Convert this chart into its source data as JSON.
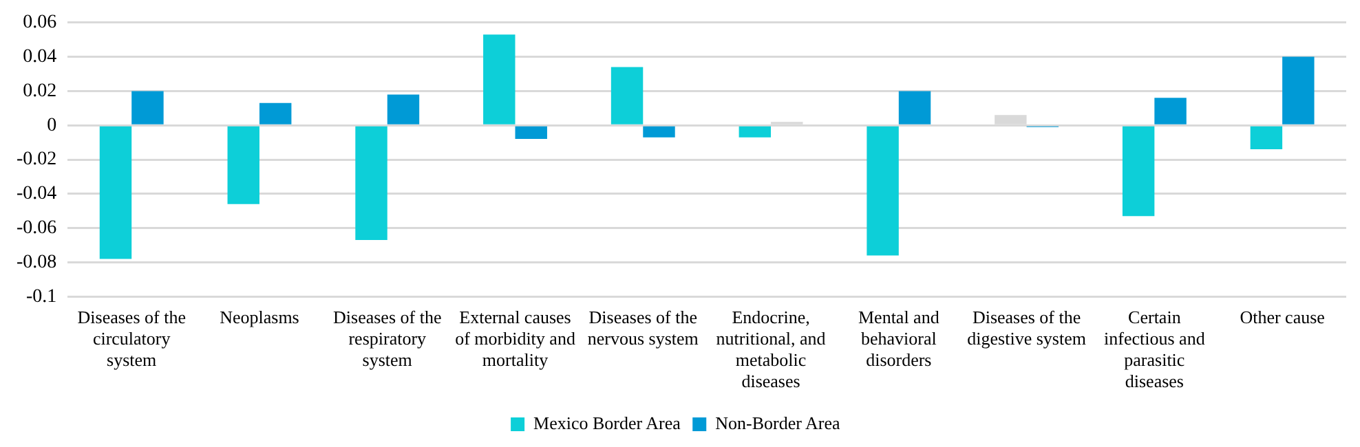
{
  "chart_data": {
    "type": "bar",
    "categories": [
      "Diseases of the circulatory system",
      "Neoplasms",
      "Diseases of the respiratory system",
      "External causes of morbidity and mortality",
      "Diseases of the nervous system",
      "Endocrine, nutritional, and metabolic diseases",
      "Mental and behavioral disorders",
      "Diseases of the digestive system",
      "Certain infectious and parasitic diseases",
      "Other cause"
    ],
    "series": [
      {
        "name": "Mexico Border Area",
        "color": "#0dcfd8",
        "colors": [
          "#0dcfd8",
          "#0dcfd8",
          "#0dcfd8",
          "#0dcfd8",
          "#0dcfd8",
          "#0dcfd8",
          "#0dcfd8",
          "#d9d9d9",
          "#0dcfd8",
          "#0dcfd8"
        ],
        "values": [
          -0.078,
          -0.046,
          -0.067,
          0.053,
          0.034,
          -0.007,
          -0.076,
          0.006,
          -0.053,
          -0.014
        ]
      },
      {
        "name": "Non-Border Area",
        "color": "#009ad6",
        "colors": [
          "#009ad6",
          "#009ad6",
          "#009ad6",
          "#009ad6",
          "#009ad6",
          "#d9d9d9",
          "#009ad6",
          "#009ad6",
          "#009ad6",
          "#009ad6"
        ],
        "values": [
          0.02,
          0.013,
          0.018,
          -0.008,
          -0.007,
          0.002,
          0.02,
          -0.001,
          0.016,
          0.04
        ]
      }
    ],
    "ylim": [
      -0.1,
      0.06
    ],
    "yticks": [
      -0.1,
      -0.08,
      -0.06,
      -0.04,
      -0.02,
      0,
      0.02,
      0.04,
      0.06
    ],
    "grid": "y",
    "legend": "bottom"
  }
}
